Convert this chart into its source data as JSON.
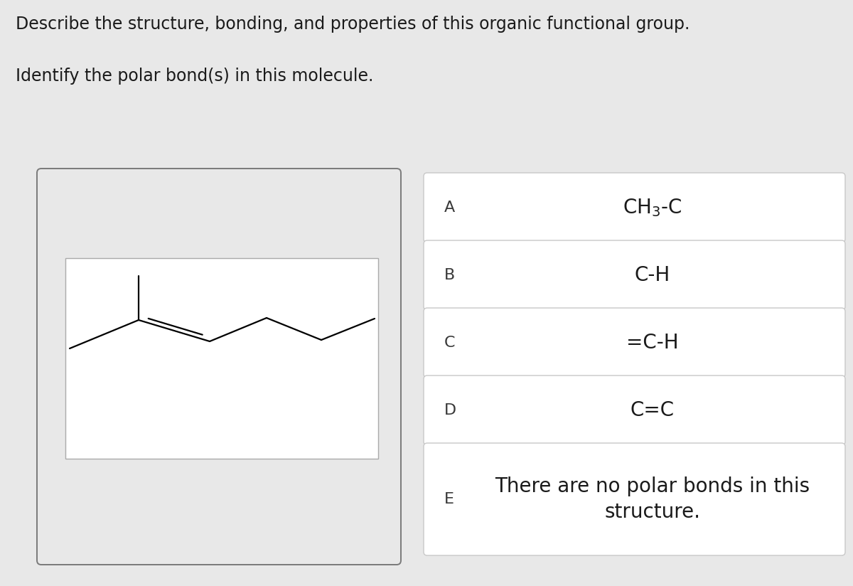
{
  "background_color": "#e8e8e8",
  "title1": "Describe the structure, bonding, and properties of this organic functional group.",
  "title2": "Identify the polar bond(s) in this molecule.",
  "title_fontsize": 17,
  "title_color": "#1a1a1a",
  "answer_options": [
    {
      "label": "A",
      "text": "CH$_3$-C"
    },
    {
      "label": "B",
      "text": "C-H"
    },
    {
      "label": "C",
      "text": "=C-H"
    },
    {
      "label": "D",
      "text": "C=C"
    },
    {
      "label": "E",
      "text": "There are no polar bonds in this\nstructure."
    }
  ],
  "answer_box_bg": "#ffffff",
  "answer_box_border": "#c8c8c8",
  "answer_label_fontsize": 16,
  "answer_text_fontsize": 20,
  "molecule_box_bg": "#ffffff",
  "outer_box_border": "#7a7a7a",
  "inner_box_border": "#aaaaaa"
}
